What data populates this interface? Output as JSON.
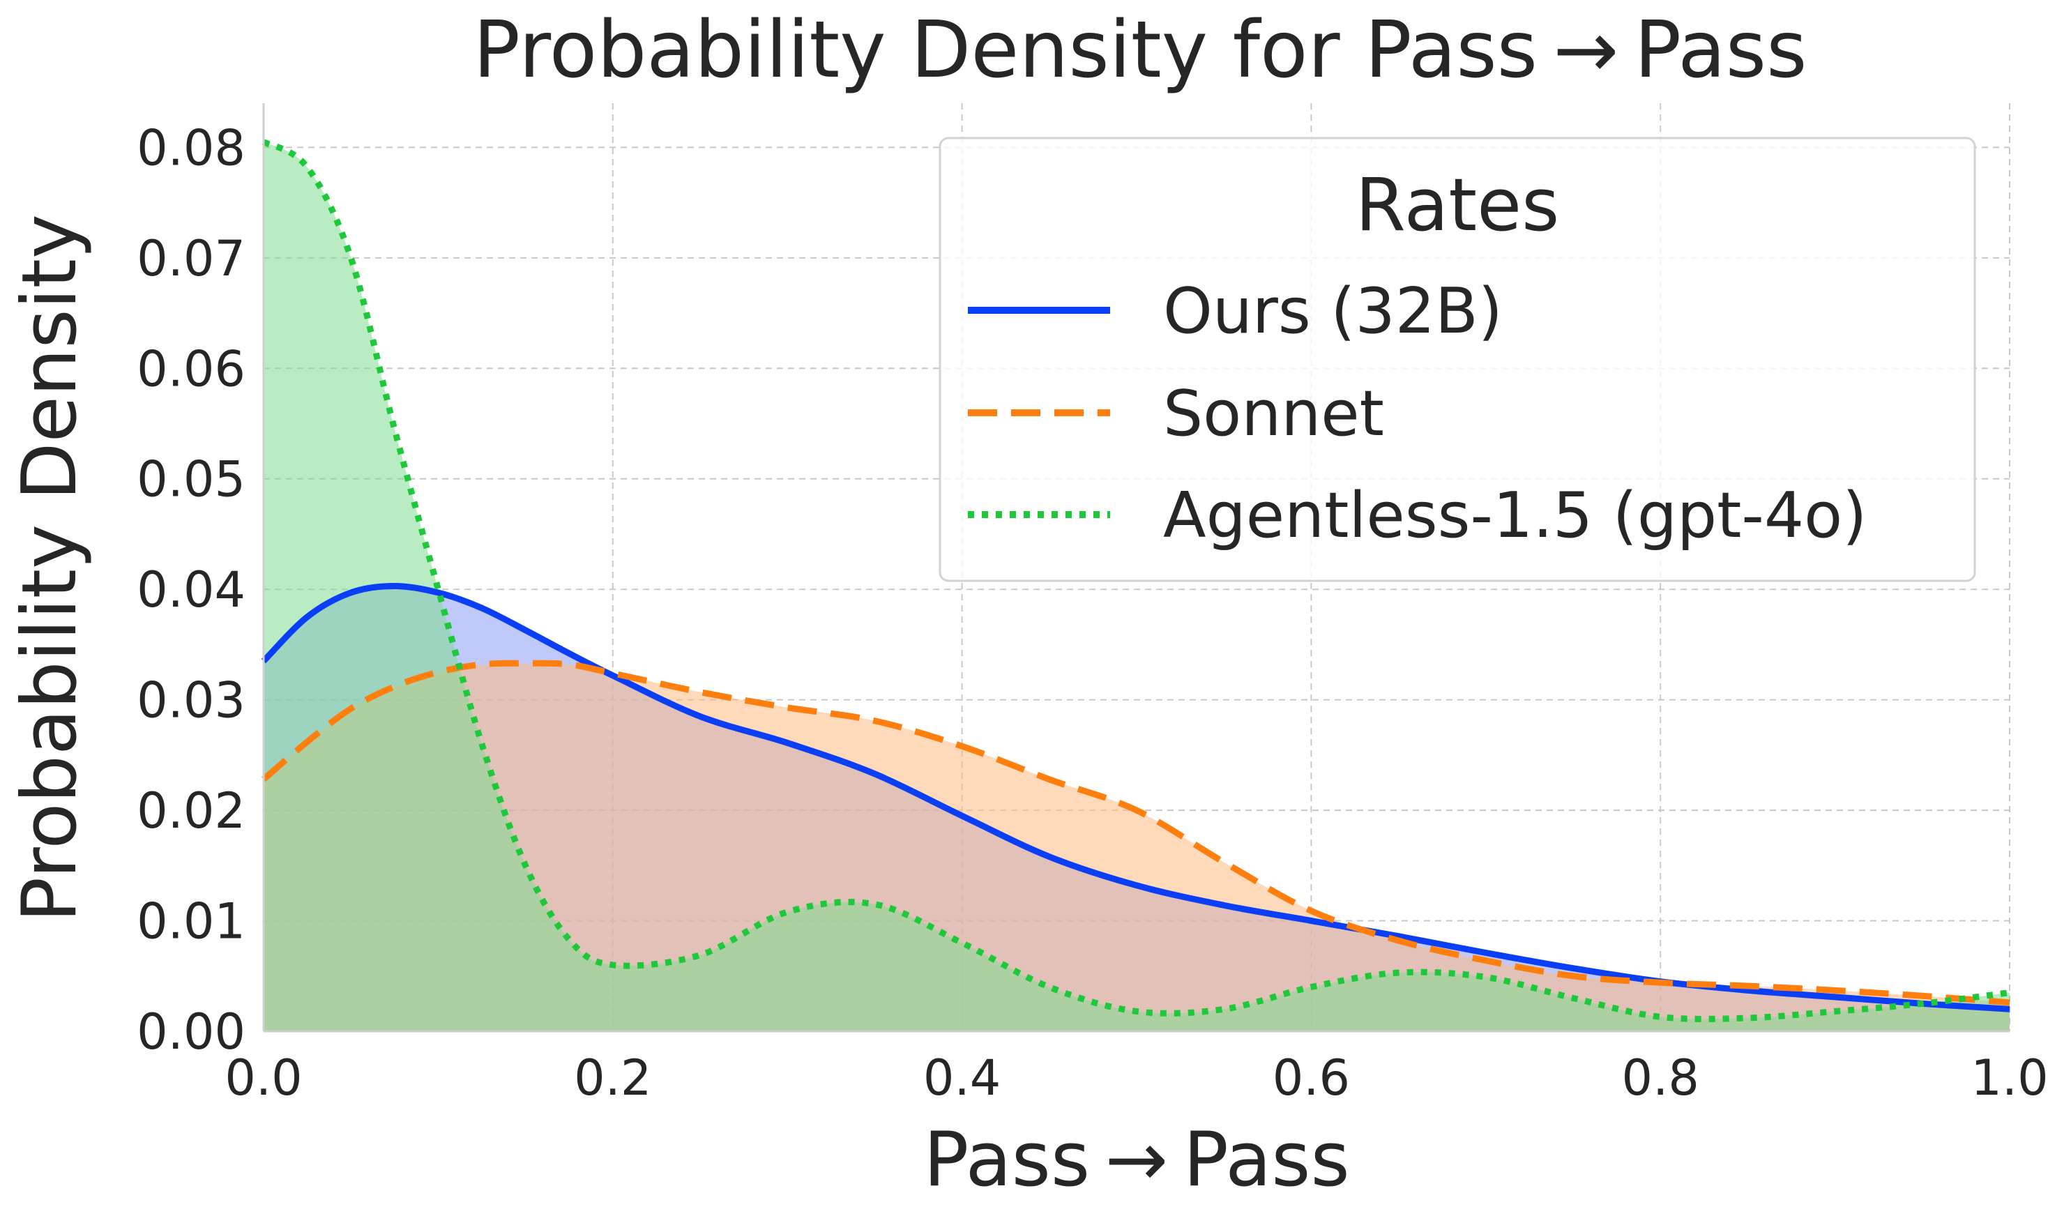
{
  "chart_data": {
    "type": "area",
    "title": "Probability Density for Pass → Pass",
    "xlabel": "Pass → Pass",
    "ylabel": "Probability Density",
    "xlim": [
      0.0,
      1.0
    ],
    "ylim": [
      0.0,
      0.084
    ],
    "xticks": [
      0.0,
      0.2,
      0.4,
      0.6,
      0.8,
      1.0
    ],
    "xtick_labels": [
      "0.0",
      "0.2",
      "0.4",
      "0.6",
      "0.8",
      "1.0"
    ],
    "yticks": [
      0.0,
      0.01,
      0.02,
      0.03,
      0.04,
      0.05,
      0.06,
      0.07,
      0.08
    ],
    "ytick_labels": [
      "0.00",
      "0.01",
      "0.02",
      "0.03",
      "0.04",
      "0.05",
      "0.06",
      "0.07",
      "0.08"
    ],
    "grid": true,
    "legend": {
      "title": "Rates",
      "placement": "top-right"
    },
    "x": [
      0.0,
      0.025,
      0.05,
      0.075,
      0.1,
      0.125,
      0.15,
      0.175,
      0.2,
      0.25,
      0.3,
      0.35,
      0.4,
      0.45,
      0.5,
      0.55,
      0.6,
      0.65,
      0.7,
      0.75,
      0.8,
      0.85,
      0.9,
      0.95,
      1.0
    ],
    "series": [
      {
        "name": "Ours (32B)",
        "color": "#0a3ff5",
        "fill": "#8a9ff7",
        "dash": "solid",
        "values": [
          0.0335,
          0.0375,
          0.0397,
          0.0403,
          0.0397,
          0.0383,
          0.0363,
          0.0342,
          0.0322,
          0.0285,
          0.0261,
          0.0233,
          0.0195,
          0.0158,
          0.0132,
          0.0114,
          0.01,
          0.0086,
          0.0071,
          0.0057,
          0.0045,
          0.0037,
          0.0031,
          0.0025,
          0.002
        ]
      },
      {
        "name": "Sonnet",
        "color": "#ff7f0e",
        "fill": "#ffbc82",
        "dash": "dashed",
        "values": [
          0.0228,
          0.0262,
          0.0292,
          0.0312,
          0.0325,
          0.0332,
          0.0333,
          0.0332,
          0.0324,
          0.0307,
          0.0293,
          0.0281,
          0.0258,
          0.0228,
          0.02,
          0.0153,
          0.0109,
          0.0082,
          0.0064,
          0.005,
          0.0044,
          0.0041,
          0.0037,
          0.0032,
          0.0026
        ]
      },
      {
        "name": "Agentless-1.5 (gpt-4o)",
        "color": "#1fc73a",
        "fill": "#7fdc8f",
        "dash": "dotted",
        "values": [
          0.0805,
          0.0782,
          0.07,
          0.0545,
          0.04,
          0.026,
          0.015,
          0.0083,
          0.006,
          0.0069,
          0.0108,
          0.0115,
          0.008,
          0.004,
          0.0018,
          0.002,
          0.004,
          0.0053,
          0.0049,
          0.003,
          0.0013,
          0.0012,
          0.0018,
          0.0025,
          0.0035
        ]
      }
    ]
  }
}
